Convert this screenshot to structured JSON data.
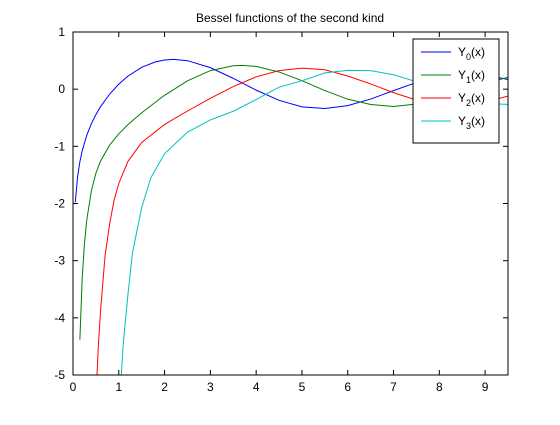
{
  "chart_data": {
    "type": "line",
    "title": "Bessel functions of the second kind",
    "xlabel": "",
    "ylabel": "",
    "xlim": [
      0,
      9.5
    ],
    "ylim": [
      -5,
      1
    ],
    "xticks": [
      0,
      1,
      2,
      3,
      4,
      5,
      6,
      7,
      8,
      9
    ],
    "yticks": [
      1,
      0,
      -1,
      -2,
      -3,
      -4,
      -5
    ],
    "grid": false,
    "legend_position": "top-right",
    "series": [
      {
        "name": "Y0(x)",
        "base": "Y",
        "sub": "0",
        "tail": "(x)",
        "color": "#0000ff",
        "x": [
          0.05,
          0.1,
          0.15,
          0.2,
          0.3,
          0.4,
          0.5,
          0.6,
          0.8,
          1.0,
          1.2,
          1.5,
          1.8,
          2.0,
          2.2,
          2.5,
          3.0,
          3.5,
          4.0,
          4.5,
          5.0,
          5.5,
          6.0,
          6.5,
          7.0,
          7.5,
          8.0,
          8.5,
          9.0,
          9.5
        ],
        "values": [
          -1.979,
          -1.534,
          -1.271,
          -1.081,
          -0.807,
          -0.606,
          -0.445,
          -0.309,
          -0.087,
          0.088,
          0.228,
          0.382,
          0.477,
          0.51,
          0.521,
          0.498,
          0.377,
          0.189,
          -0.017,
          -0.195,
          -0.309,
          -0.339,
          -0.288,
          -0.173,
          -0.026,
          0.118,
          0.223,
          0.272,
          0.25,
          0.169
        ]
      },
      {
        "name": "Y1(x)",
        "base": "Y",
        "sub": "1",
        "tail": "(x)",
        "color": "#008000",
        "x": [
          0.15,
          0.2,
          0.25,
          0.3,
          0.4,
          0.5,
          0.6,
          0.8,
          1.0,
          1.2,
          1.5,
          2.0,
          2.5,
          3.0,
          3.5,
          3.7,
          4.0,
          4.5,
          5.0,
          5.5,
          6.0,
          6.5,
          7.0,
          7.5,
          8.0,
          8.5,
          9.0,
          9.5
        ],
        "values": [
          -4.383,
          -3.324,
          -2.704,
          -2.294,
          -1.781,
          -1.471,
          -1.26,
          -0.978,
          -0.781,
          -0.621,
          -0.412,
          -0.107,
          0.146,
          0.325,
          0.41,
          0.417,
          0.398,
          0.301,
          0.148,
          -0.024,
          -0.175,
          -0.268,
          -0.303,
          -0.259,
          -0.158,
          -0.032,
          0.105,
          0.207
        ]
      },
      {
        "name": "Y2(x)",
        "base": "Y",
        "sub": "2",
        "tail": "(x)",
        "color": "#ff0000",
        "x": [
          0.5,
          0.55,
          0.6,
          0.7,
          0.8,
          0.9,
          1.0,
          1.2,
          1.5,
          2.0,
          2.5,
          3.0,
          3.5,
          4.0,
          4.5,
          5.0,
          5.5,
          6.0,
          6.5,
          7.0,
          7.5,
          8.0,
          8.5,
          9.0,
          9.5
        ],
        "values": [
          -5.441,
          -4.543,
          -3.893,
          -2.914,
          -2.358,
          -1.932,
          -1.65,
          -1.264,
          -0.932,
          -0.617,
          -0.382,
          -0.16,
          0.045,
          0.216,
          0.324,
          0.368,
          0.34,
          0.23,
          0.092,
          -0.061,
          -0.191,
          -0.263,
          -0.283,
          -0.227,
          -0.121
        ]
      },
      {
        "name": "Y3(x)",
        "base": "Y",
        "sub": "3",
        "tail": "(x)",
        "color": "#00bfbf",
        "x": [
          1.0,
          1.05,
          1.1,
          1.2,
          1.3,
          1.5,
          1.7,
          2.0,
          2.5,
          3.0,
          3.5,
          4.0,
          4.5,
          5.0,
          5.5,
          6.0,
          6.5,
          7.0,
          7.5,
          8.0,
          8.5,
          9.0,
          9.5
        ],
        "values": [
          -5.821,
          -5.055,
          -4.43,
          -3.59,
          -2.859,
          -2.07,
          -1.55,
          -1.128,
          -0.752,
          -0.538,
          -0.386,
          -0.182,
          0.035,
          0.146,
          0.285,
          0.328,
          0.325,
          0.253,
          0.13,
          -0.026,
          -0.168,
          -0.25,
          -0.265
        ]
      }
    ]
  }
}
